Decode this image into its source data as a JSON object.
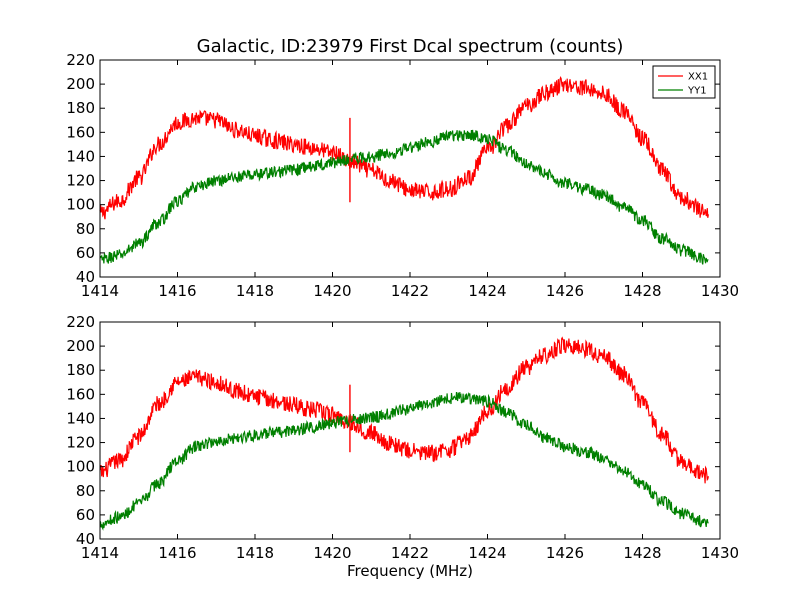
{
  "figure": {
    "title": "Galactic, ID:23979 First Dcal spectrum (counts)",
    "xlabel": "Frequency (MHz)",
    "colors": {
      "XX1": "#ff0000",
      "YY1": "#008000"
    }
  },
  "chart_data": [
    {
      "type": "line",
      "title": "Galactic, ID:23979 First Dcal spectrum (counts)",
      "xlabel": "",
      "ylabel": "",
      "xlim": [
        1414,
        1430
      ],
      "ylim": [
        40,
        220
      ],
      "xticks": [
        1414,
        1416,
        1418,
        1420,
        1422,
        1424,
        1426,
        1428,
        1430
      ],
      "yticks": [
        40,
        60,
        80,
        100,
        120,
        140,
        160,
        180,
        200,
        220
      ],
      "grid": false,
      "legend_position": "top-right",
      "x": [
        1414.0,
        1414.5,
        1415.0,
        1415.5,
        1416.0,
        1416.5,
        1417.0,
        1417.5,
        1418.0,
        1418.5,
        1419.0,
        1419.5,
        1420.0,
        1420.5,
        1421.0,
        1421.5,
        1422.0,
        1422.5,
        1423.0,
        1423.5,
        1424.0,
        1424.5,
        1425.0,
        1425.5,
        1426.0,
        1426.5,
        1427.0,
        1427.5,
        1428.0,
        1428.5,
        1429.0,
        1429.7
      ],
      "series": [
        {
          "name": "XX1",
          "color": "#ff0000",
          "values": [
            93,
            103,
            122,
            150,
            168,
            172,
            170,
            162,
            157,
            153,
            150,
            147,
            143,
            135,
            128,
            120,
            112,
            110,
            113,
            122,
            145,
            165,
            182,
            193,
            200,
            197,
            192,
            178,
            155,
            128,
            105,
            92
          ]
        },
        {
          "name": "YY1",
          "color": "#008000",
          "values": [
            54,
            58,
            68,
            85,
            103,
            115,
            120,
            123,
            125,
            127,
            129,
            132,
            135,
            138,
            140,
            143,
            147,
            152,
            157,
            158,
            155,
            145,
            135,
            125,
            118,
            113,
            108,
            98,
            87,
            72,
            62,
            54
          ]
        }
      ],
      "spike": {
        "x": 1420.45,
        "top": 172,
        "bottom": 102
      }
    },
    {
      "type": "line",
      "title": "",
      "xlabel": "Frequency (MHz)",
      "ylabel": "",
      "xlim": [
        1414,
        1430
      ],
      "ylim": [
        40,
        220
      ],
      "xticks": [
        1414,
        1416,
        1418,
        1420,
        1422,
        1424,
        1426,
        1428,
        1430
      ],
      "yticks": [
        40,
        60,
        80,
        100,
        120,
        140,
        160,
        180,
        200,
        220
      ],
      "grid": false,
      "legend_position": "none",
      "x": [
        1414.0,
        1414.5,
        1415.0,
        1415.5,
        1416.0,
        1416.5,
        1417.0,
        1417.5,
        1418.0,
        1418.5,
        1419.0,
        1419.5,
        1420.0,
        1420.5,
        1421.0,
        1421.5,
        1422.0,
        1422.5,
        1423.0,
        1423.5,
        1424.0,
        1424.5,
        1425.0,
        1425.5,
        1426.0,
        1426.5,
        1427.0,
        1427.5,
        1428.0,
        1428.5,
        1429.0,
        1429.7
      ],
      "series": [
        {
          "name": "XX1",
          "color": "#ff0000",
          "values": [
            95,
            105,
            125,
            152,
            170,
            174,
            170,
            163,
            158,
            155,
            151,
            147,
            143,
            136,
            128,
            119,
            113,
            111,
            114,
            124,
            146,
            166,
            182,
            193,
            201,
            198,
            191,
            177,
            153,
            127,
            104,
            92
          ]
        },
        {
          "name": "YY1",
          "color": "#008000",
          "values": [
            53,
            58,
            69,
            86,
            105,
            117,
            121,
            124,
            126,
            128,
            130,
            133,
            136,
            139,
            141,
            144,
            148,
            153,
            157,
            157,
            154,
            145,
            134,
            124,
            117,
            112,
            107,
            97,
            86,
            71,
            61,
            53
          ]
        }
      ],
      "spike": {
        "x": 1420.45,
        "top": 168,
        "bottom": 112
      }
    }
  ]
}
